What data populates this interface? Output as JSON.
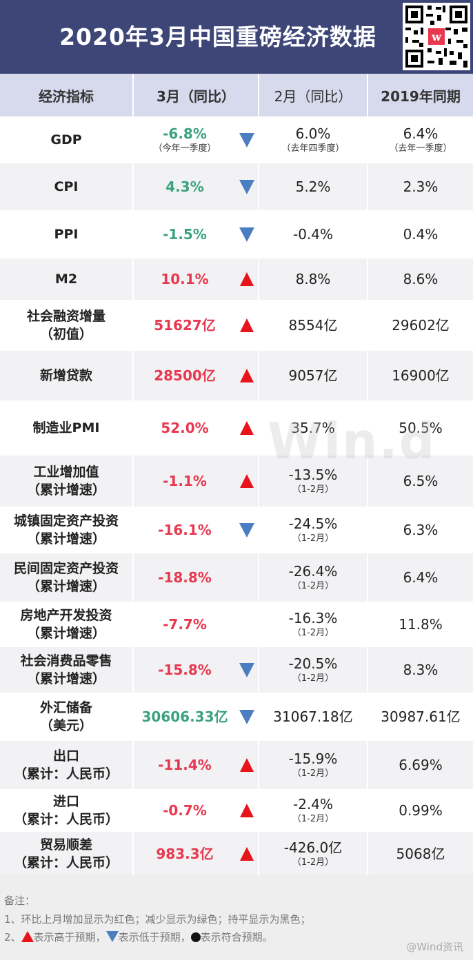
{
  "title": "2020年3月中国重磅经济数据",
  "columns": [
    "经济指标",
    "3月（同比）",
    "2月（同比）",
    "2019年同期"
  ],
  "watermark": "Win.d",
  "rows": [
    {
      "name": "GDP",
      "name_sub": "",
      "mar": "-6.8%",
      "mar_color": "green",
      "mar_sub": "（今年一季度）",
      "arrow": "down",
      "feb": "6.0%",
      "feb_sub": "（去年四季度）",
      "y2019": "6.4%",
      "y2019_sub": "（去年一季度）"
    },
    {
      "name": "CPI",
      "name_sub": "",
      "mar": "4.3%",
      "mar_color": "green",
      "mar_sub": "",
      "arrow": "down",
      "feb": "5.2%",
      "feb_sub": "",
      "y2019": "2.3%",
      "y2019_sub": ""
    },
    {
      "name": "PPI",
      "name_sub": "",
      "mar": "-1.5%",
      "mar_color": "green",
      "mar_sub": "",
      "arrow": "down",
      "feb": "-0.4%",
      "feb_sub": "",
      "y2019": "0.4%",
      "y2019_sub": ""
    },
    {
      "name": "M2",
      "name_sub": "",
      "mar": "10.1%",
      "mar_color": "red",
      "mar_sub": "",
      "arrow": "up",
      "feb": "8.8%",
      "feb_sub": "",
      "y2019": "8.6%",
      "y2019_sub": ""
    },
    {
      "name": "社会融资增量",
      "name_sub": "（初值）",
      "mar": "51627亿",
      "mar_color": "red",
      "mar_sub": "",
      "arrow": "up",
      "feb": "8554亿",
      "feb_sub": "",
      "y2019": "29602亿",
      "y2019_sub": ""
    },
    {
      "name": "新增贷款",
      "name_sub": "",
      "mar": "28500亿",
      "mar_color": "red",
      "mar_sub": "",
      "arrow": "up",
      "feb": "9057亿",
      "feb_sub": "",
      "y2019": "16900亿",
      "y2019_sub": ""
    },
    {
      "name": "制造业PMI",
      "name_sub": "",
      "mar": "52.0%",
      "mar_color": "red",
      "mar_sub": "",
      "arrow": "up",
      "feb": "35.7%",
      "feb_sub": "",
      "y2019": "50.5%",
      "y2019_sub": ""
    },
    {
      "name": "工业增加值",
      "name_sub": "（累计增速）",
      "mar": "-1.1%",
      "mar_color": "red",
      "mar_sub": "",
      "arrow": "up",
      "feb": "-13.5%",
      "feb_sub": "（1-2月）",
      "y2019": "6.5%",
      "y2019_sub": ""
    },
    {
      "name": "城镇固定资产投资",
      "name_sub": "（累计增速）",
      "mar": "-16.1%",
      "mar_color": "red",
      "mar_sub": "",
      "arrow": "down",
      "feb": "-24.5%",
      "feb_sub": "（1-2月）",
      "y2019": "6.3%",
      "y2019_sub": ""
    },
    {
      "name": "民间固定资产投资",
      "name_sub": "（累计增速）",
      "mar": "-18.8%",
      "mar_color": "red",
      "mar_sub": "",
      "arrow": "",
      "feb": "-26.4%",
      "feb_sub": "（1-2月）",
      "y2019": "6.4%",
      "y2019_sub": ""
    },
    {
      "name": "房地产开发投资",
      "name_sub": "（累计增速）",
      "mar": "-7.7%",
      "mar_color": "red",
      "mar_sub": "",
      "arrow": "",
      "feb": "-16.3%",
      "feb_sub": "（1-2月）",
      "y2019": "11.8%",
      "y2019_sub": ""
    },
    {
      "name": "社会消费品零售",
      "name_sub": "（累计增速）",
      "mar": "-15.8%",
      "mar_color": "red",
      "mar_sub": "",
      "arrow": "down",
      "feb": "-20.5%",
      "feb_sub": "（1-2月）",
      "y2019": "8.3%",
      "y2019_sub": ""
    },
    {
      "name": "外汇储备",
      "name_sub": "（美元）",
      "mar": "30606.33亿",
      "mar_color": "green",
      "mar_sub": "",
      "arrow": "down",
      "feb": "31067.18亿",
      "feb_sub": "",
      "y2019": "30987.61亿",
      "y2019_sub": ""
    },
    {
      "name": "出口",
      "name_sub": "（累计：人民币）",
      "mar": "-11.4%",
      "mar_color": "red",
      "mar_sub": "",
      "arrow": "up",
      "feb": "-15.9%",
      "feb_sub": "（1-2月）",
      "y2019": "6.69%",
      "y2019_sub": ""
    },
    {
      "name": "进口",
      "name_sub": "（累计：人民币）",
      "mar": "-0.7%",
      "mar_color": "red",
      "mar_sub": "",
      "arrow": "up",
      "feb": "-2.4%",
      "feb_sub": "（1-2月）",
      "y2019": "0.99%",
      "y2019_sub": ""
    },
    {
      "name": "贸易顺差",
      "name_sub": "（累计：人民币）",
      "mar": "983.3亿",
      "mar_color": "red",
      "mar_sub": "",
      "arrow": "up",
      "feb": "-426.0亿",
      "feb_sub": "（1-2月）",
      "y2019": "5068亿",
      "y2019_sub": ""
    }
  ],
  "notes": {
    "heading": "备注：",
    "line1": "1、环比上月增加显示为红色；减少显示为绿色；持平显示为黑色；",
    "line2_prefix": "2、",
    "line2_up": "表示高于预期，",
    "line2_down": "表示低于预期，",
    "line2_dot": "表示符合预期。",
    "credit": "@Wind资讯"
  },
  "colors": {
    "header_bg": "#3d4677",
    "colhead_bg": "#d7d9ec",
    "row_alt": "#f2f2f4",
    "green": "#3aa27e",
    "red": "#e8384f",
    "arrow_up": "#e8141b",
    "arrow_down": "#4a7ec0"
  }
}
